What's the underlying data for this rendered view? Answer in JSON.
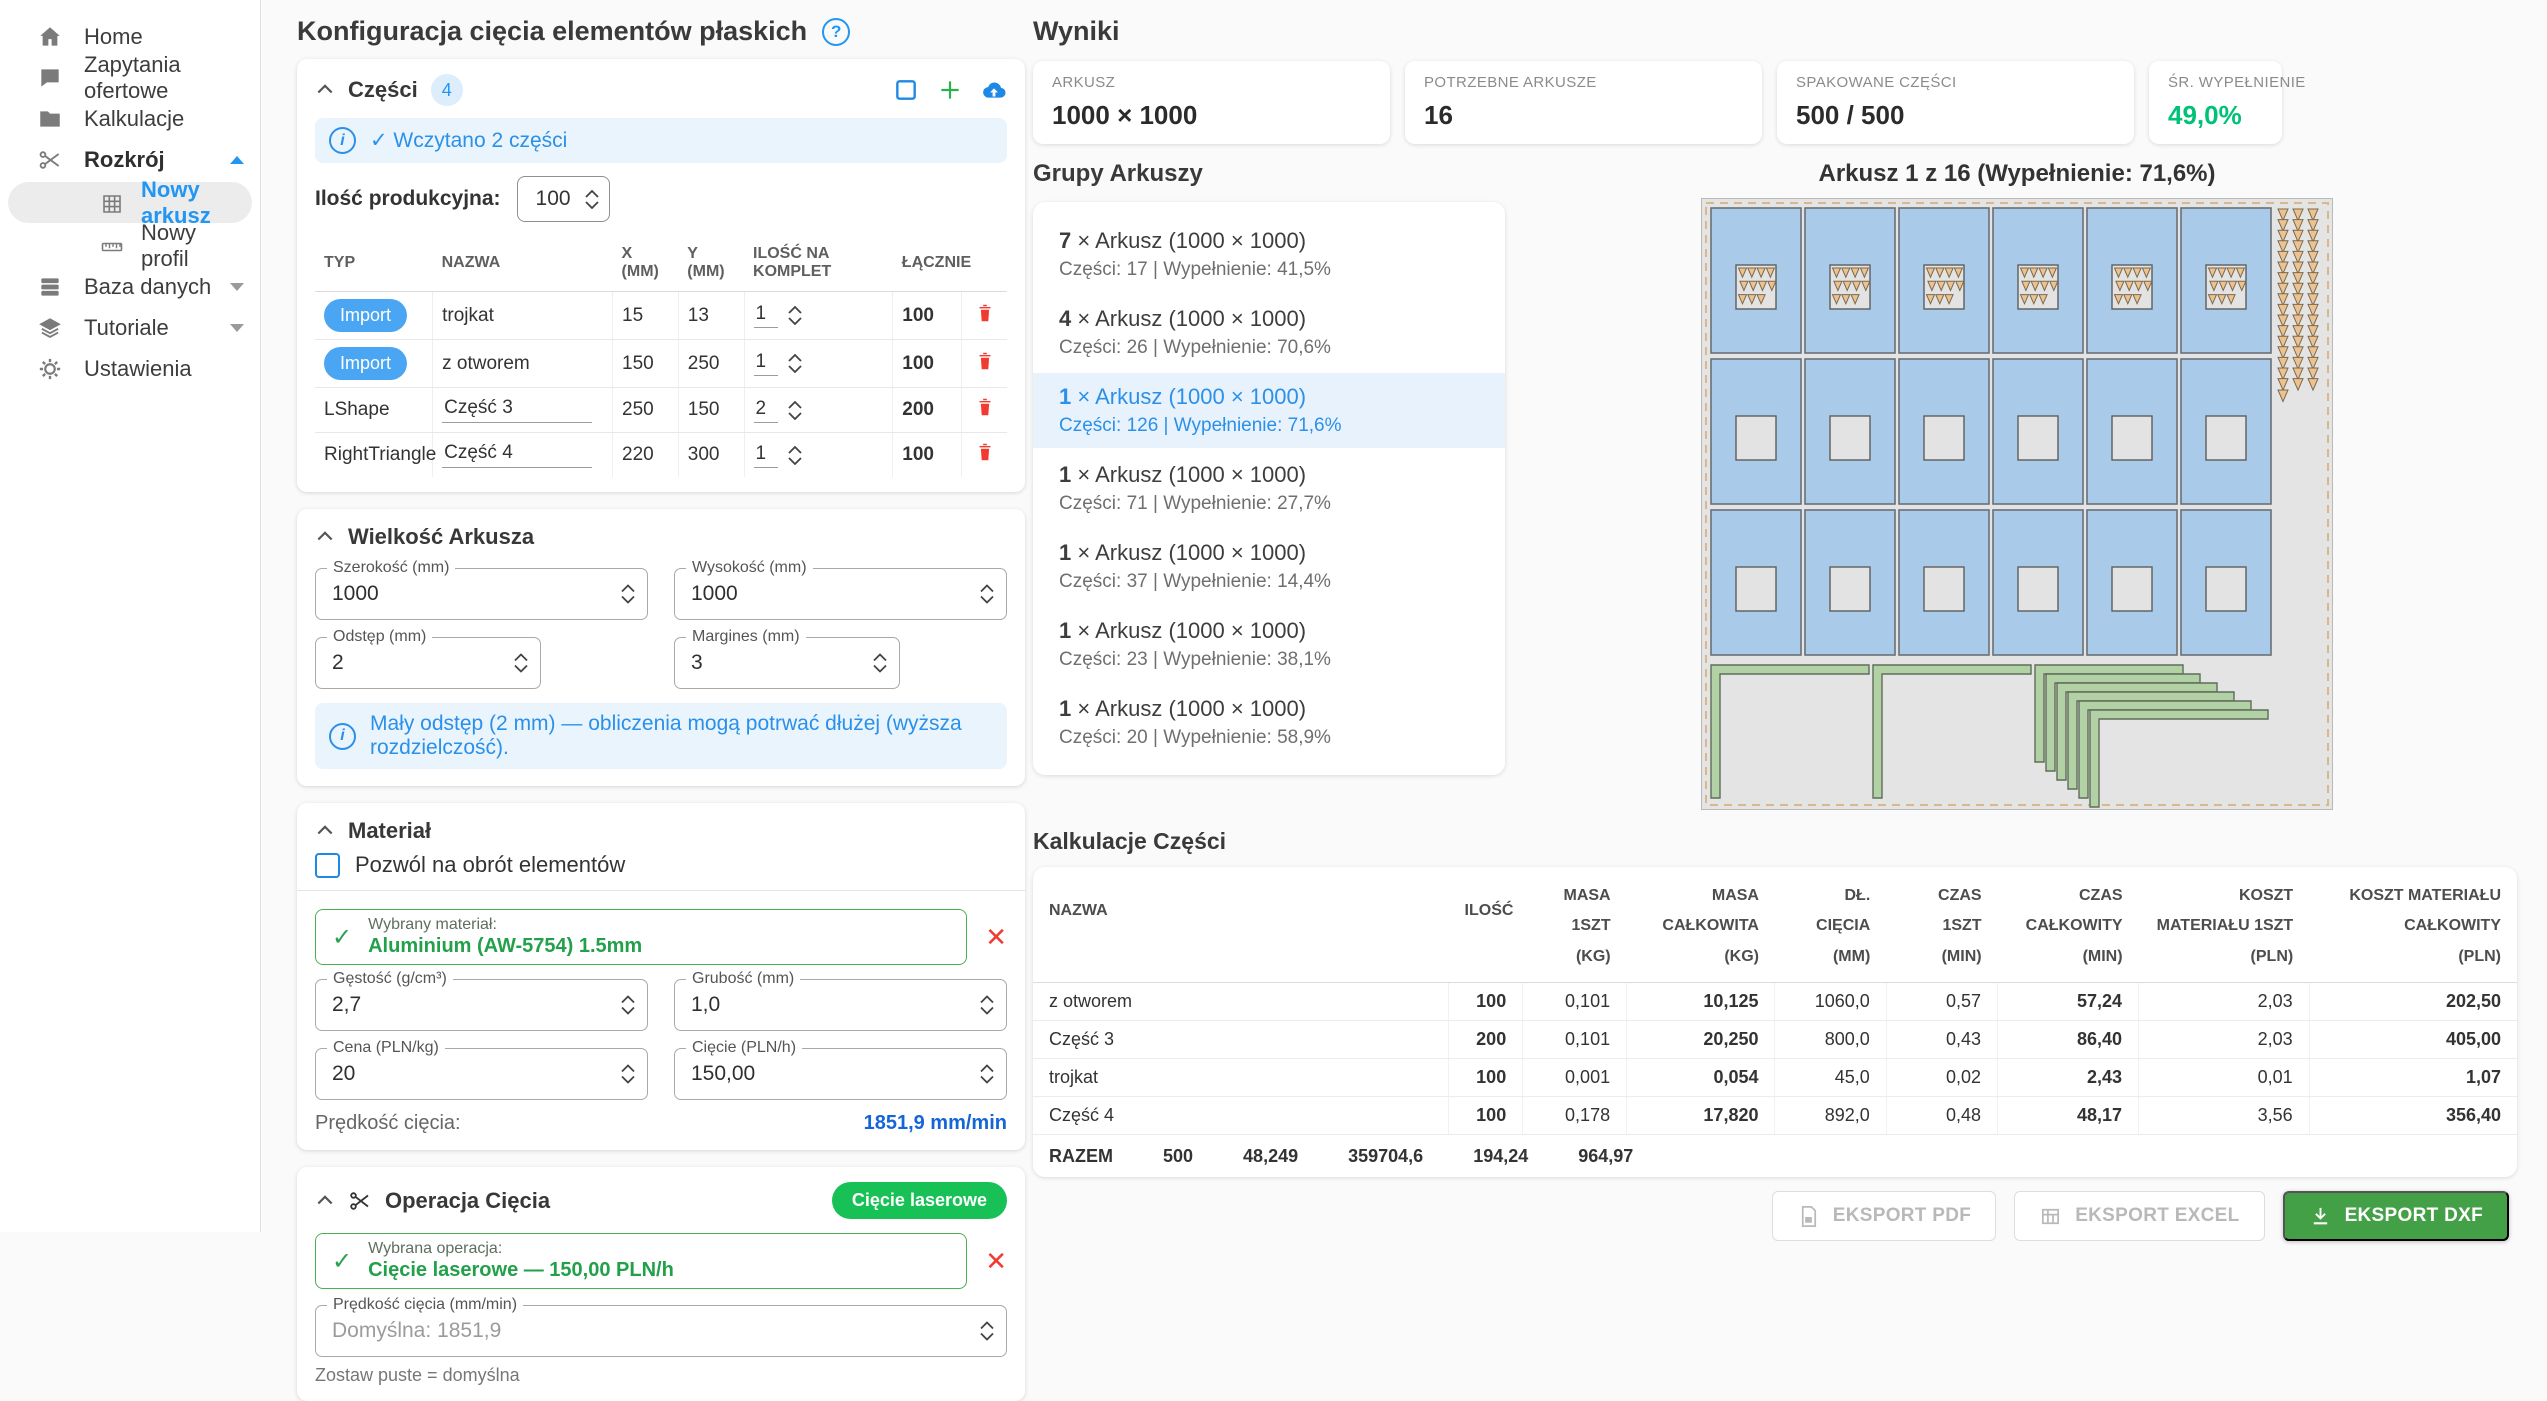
{
  "sidebar": {
    "items": [
      {
        "label": "Home",
        "icon": "home"
      },
      {
        "label": "Zapytania ofertowe",
        "icon": "chat"
      },
      {
        "label": "Kalkulacje",
        "icon": "folder"
      },
      {
        "label": "Rozkrój",
        "icon": "scissors",
        "expanded": true,
        "bold": true
      },
      {
        "label": "Nowy arkusz",
        "icon": "grid",
        "child": true,
        "active": true
      },
      {
        "label": "Nowy profil",
        "icon": "ruler",
        "child": true
      },
      {
        "label": "Baza danych",
        "icon": "database",
        "collapsible": true
      },
      {
        "label": "Tutoriale",
        "icon": "layers",
        "collapsible": true
      },
      {
        "label": "Ustawienia",
        "icon": "gear"
      }
    ]
  },
  "config": {
    "title": "Konfiguracja cięcia elementów płaskich",
    "parts": {
      "title": "Części",
      "badge": "4",
      "info": "✓ Wczytano 2 części",
      "qty_label": "Ilość produkcyjna:",
      "qty_value": "100",
      "columns": [
        "TYP",
        "NAZWA",
        "X (MM)",
        "Y (MM)",
        "ILOŚĆ NA KOMPLET",
        "ŁĄCZNIE"
      ],
      "rows": [
        {
          "type": "Import",
          "pill": true,
          "name": "trojkat",
          "editable": false,
          "x": "15",
          "y": "13",
          "per_set": "1",
          "total": "100"
        },
        {
          "type": "Import",
          "pill": true,
          "name": "z otworem",
          "editable": false,
          "x": "150",
          "y": "250",
          "per_set": "1",
          "total": "100"
        },
        {
          "type": "LShape",
          "pill": false,
          "name": "Część 3",
          "editable": true,
          "x": "250",
          "y": "150",
          "per_set": "2",
          "total": "200"
        },
        {
          "type": "RightTriangle",
          "pill": false,
          "name": "Część 4",
          "editable": true,
          "x": "220",
          "y": "300",
          "per_set": "1",
          "total": "100"
        }
      ]
    },
    "sheet_size": {
      "title": "Wielkość Arkusza",
      "fields": [
        {
          "label": "Szerokość (mm)",
          "value": "1000"
        },
        {
          "label": "Wysokość (mm)",
          "value": "1000"
        },
        {
          "label": "Odstęp (mm)",
          "value": "2",
          "narrow": true
        },
        {
          "label": "Margines (mm)",
          "value": "3",
          "narrow": true
        }
      ],
      "info": "Mały odstęp (2 mm) — obliczenia mogą potrwać dłużej (wyższa rozdzielczość)."
    },
    "material": {
      "title": "Materiał",
      "rotate_label": "Pozwól na obrót elementów",
      "selected_label": "Wybrany materiał:",
      "selected_value": "Aluminium (AW-5754) 1.5mm",
      "fields": [
        {
          "label": "Gęstość (g/cm³)",
          "value": "2,7"
        },
        {
          "label": "Grubość (mm)",
          "value": "1,0"
        },
        {
          "label": "Cena (PLN/kg)",
          "value": "20"
        },
        {
          "label": "Cięcie (PLN/h)",
          "value": "150,00"
        }
      ],
      "speed_label": "Prędkość cięcia:",
      "speed_value": "1851,9 mm/min"
    },
    "operation": {
      "title": "Operacja Cięcia",
      "badge": "Cięcie laserowe",
      "selected_label": "Wybrana operacja:",
      "selected_value": "Cięcie laserowe — 150,00 PLN/h",
      "speed_field_label": "Prędkość cięcia (mm/min)",
      "speed_placeholder": "Domyślna: 1851,9",
      "helper": "Zostaw puste = domyślna"
    }
  },
  "results": {
    "title": "Wyniki",
    "stats": [
      {
        "label": "ARKUSZ",
        "value": "1000 × 1000"
      },
      {
        "label": "POTRZEBNE ARKUSZE",
        "value": "16"
      },
      {
        "label": "SPAKOWANE CZĘŚCI",
        "value": "500 / 500"
      },
      {
        "label": "ŚR. WYPEŁNIENIE",
        "value": "49,0%",
        "color": "#00c277",
        "small": true
      }
    ],
    "groups": {
      "title": "Grupy Arkuszy",
      "items": [
        {
          "count": "7",
          "name": "Arkusz (1000 × 1000)",
          "detail": "Części: 17 | Wypełnienie: 41,5%"
        },
        {
          "count": "4",
          "name": "Arkusz (1000 × 1000)",
          "detail": "Części: 26 | Wypełnienie: 70,6%"
        },
        {
          "count": "1",
          "name": "Arkusz (1000 × 1000)",
          "detail": "Części: 126 | Wypełnienie: 71,6%",
          "selected": true
        },
        {
          "count": "1",
          "name": "Arkusz (1000 × 1000)",
          "detail": "Części: 71 | Wypełnienie: 27,7%"
        },
        {
          "count": "1",
          "name": "Arkusz (1000 × 1000)",
          "detail": "Części: 37 | Wypełnienie: 14,4%"
        },
        {
          "count": "1",
          "name": "Arkusz (1000 × 1000)",
          "detail": "Części: 23 | Wypełnienie: 38,1%"
        },
        {
          "count": "1",
          "name": "Arkusz (1000 × 1000)",
          "detail": "Części: 20 | Wypełnienie: 58,9%"
        }
      ]
    },
    "viewer": {
      "title": "Arkusz 1 z 16 (Wypełnienie: 71,6%)",
      "cols": 6,
      "rows": 3,
      "colors": {
        "bg": "#e4e4e4",
        "margin": "#d9b98c",
        "part": "#a9cbe9",
        "part_stroke": "#697077",
        "hole": "#e3e3e3",
        "hole_stroke": "#5d5d5d",
        "triangle": "#eec28e",
        "triangle_stroke": "#7a6a4f",
        "lshape": "#b2d2a6",
        "lshape_stroke": "#5f6d5a"
      }
    },
    "calc": {
      "title": "Kalkulacje Części",
      "columns": [
        {
          "t": "NAZWA",
          "u": ""
        },
        {
          "t": "ILOŚĆ",
          "u": ""
        },
        {
          "t": "MASA 1SZT",
          "u": "(KG)"
        },
        {
          "t": "MASA CAŁKOWITA",
          "u": "(KG)"
        },
        {
          "t": "DŁ. CIĘCIA",
          "u": "(MM)"
        },
        {
          "t": "CZAS 1SZT",
          "u": "(MIN)"
        },
        {
          "t": "CZAS CAŁKOWITY",
          "u": "(MIN)"
        },
        {
          "t": "KOSZT MATERIAŁU 1SZT",
          "u": "(PLN)"
        },
        {
          "t": "KOSZT MATERIAŁU CAŁKOWITY",
          "u": "(PLN)"
        }
      ],
      "bold_columns": [
        1,
        3,
        6,
        8
      ],
      "rows": [
        [
          "z otworem",
          "100",
          "0,101",
          "10,125",
          "1060,0",
          "0,57",
          "57,24",
          "2,03",
          "202,50"
        ],
        [
          "Część 3",
          "200",
          "0,101",
          "20,250",
          "800,0",
          "0,43",
          "86,40",
          "2,03",
          "405,00"
        ],
        [
          "trojkat",
          "100",
          "0,001",
          "0,054",
          "45,0",
          "0,02",
          "2,43",
          "0,01",
          "1,07"
        ],
        [
          "Część 4",
          "100",
          "0,178",
          "17,820",
          "892,0",
          "0,48",
          "48,17",
          "3,56",
          "356,40"
        ]
      ],
      "totals": [
        "RAZEM",
        "500",
        "48,249",
        "359704,6",
        "194,24",
        "964,97"
      ]
    },
    "export_buttons": [
      {
        "label": "EKSPORT PDF",
        "icon": "pdf",
        "disabled": true
      },
      {
        "label": "EKSPORT EXCEL",
        "icon": "excel",
        "disabled": true
      },
      {
        "label": "EKSPORT DXF",
        "icon": "download",
        "disabled": false
      }
    ]
  }
}
